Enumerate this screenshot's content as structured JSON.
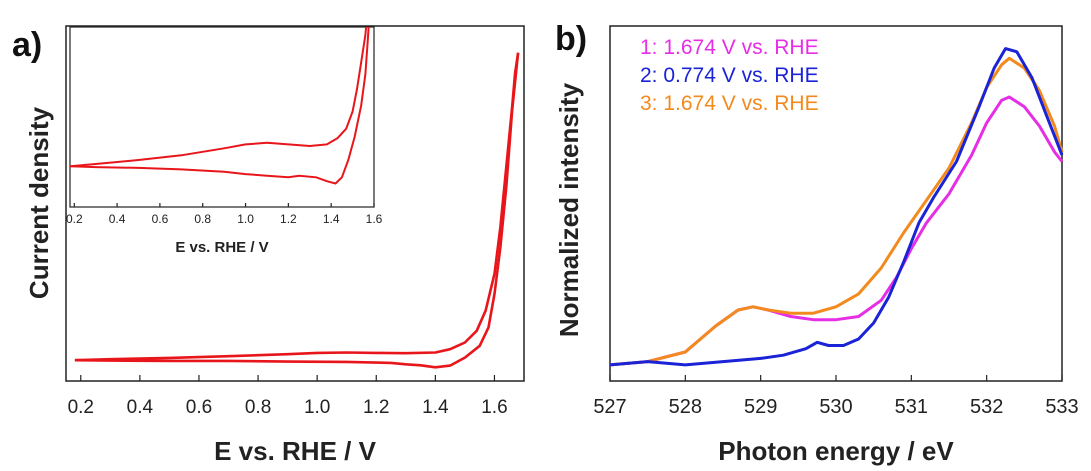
{
  "panels": [
    {
      "label": "a)"
    },
    {
      "label": "b)"
    }
  ],
  "chart_data": [
    {
      "type": "line",
      "panel": "a)",
      "title": "",
      "xlabel": "E vs. RHE / V",
      "ylabel": "Current density",
      "xlim": [
        0.15,
        1.7
      ],
      "ylim": [
        -0.6,
        10
      ],
      "x_ticks": [
        "0.2",
        "0.4",
        "0.6",
        "0.8",
        "1.0",
        "1.2",
        "1.4",
        "1.6"
      ],
      "y_ticks_shown": false,
      "grid": false,
      "series": [
        {
          "color": "#e8161b",
          "anodic": [
            [
              0.18,
              0.02
            ],
            [
              0.3,
              0.05
            ],
            [
              0.5,
              0.09
            ],
            [
              0.7,
              0.14
            ],
            [
              0.9,
              0.2
            ],
            [
              1.0,
              0.24
            ],
            [
              1.1,
              0.25
            ],
            [
              1.2,
              0.24
            ],
            [
              1.3,
              0.23
            ],
            [
              1.4,
              0.25
            ],
            [
              1.45,
              0.35
            ],
            [
              1.5,
              0.55
            ],
            [
              1.54,
              0.9
            ],
            [
              1.57,
              1.5
            ],
            [
              1.6,
              2.6
            ],
            [
              1.62,
              4.0
            ],
            [
              1.64,
              5.8
            ],
            [
              1.66,
              7.6
            ],
            [
              1.67,
              8.6
            ],
            [
              1.68,
              9.2
            ]
          ],
          "cathodic": [
            [
              1.68,
              9.2
            ],
            [
              1.66,
              7.5
            ],
            [
              1.64,
              5.2
            ],
            [
              1.62,
              3.4
            ],
            [
              1.6,
              2.0
            ],
            [
              1.58,
              1.0
            ],
            [
              1.55,
              0.45
            ],
            [
              1.5,
              0.1
            ],
            [
              1.45,
              -0.14
            ],
            [
              1.4,
              -0.19
            ],
            [
              1.35,
              -0.13
            ],
            [
              1.3,
              -0.1
            ],
            [
              1.25,
              -0.06
            ],
            [
              1.2,
              -0.05
            ],
            [
              1.1,
              -0.03
            ],
            [
              0.9,
              -0.02
            ],
            [
              0.7,
              0.0
            ],
            [
              0.5,
              0.0
            ],
            [
              0.3,
              0.01
            ],
            [
              0.18,
              0.02
            ]
          ]
        }
      ]
    },
    {
      "type": "line",
      "panel": "inset",
      "title": "",
      "xlabel": "E vs. RHE / V",
      "ylabel": "",
      "xlim": [
        0.18,
        1.6
      ],
      "ylim": [
        -0.5,
        1.8
      ],
      "x_ticks": [
        "0.2",
        "0.4",
        "0.6",
        "0.8",
        "1.0",
        "1.2",
        "1.4",
        "1.6"
      ],
      "grid": false,
      "series": [
        {
          "color": "#e8161b",
          "anodic": [
            [
              0.18,
              0.02
            ],
            [
              0.3,
              0.05
            ],
            [
              0.5,
              0.1
            ],
            [
              0.7,
              0.16
            ],
            [
              0.9,
              0.25
            ],
            [
              1.0,
              0.3
            ],
            [
              1.1,
              0.32
            ],
            [
              1.2,
              0.3
            ],
            [
              1.3,
              0.28
            ],
            [
              1.38,
              0.3
            ],
            [
              1.43,
              0.38
            ],
            [
              1.47,
              0.5
            ],
            [
              1.5,
              0.72
            ],
            [
              1.52,
              1.0
            ],
            [
              1.54,
              1.35
            ],
            [
              1.56,
              1.7
            ],
            [
              1.57,
              2.0
            ]
          ],
          "cathodic": [
            [
              1.58,
              2.0
            ],
            [
              1.57,
              1.6
            ],
            [
              1.56,
              1.2
            ],
            [
              1.54,
              0.8
            ],
            [
              1.51,
              0.4
            ],
            [
              1.48,
              0.1
            ],
            [
              1.45,
              -0.12
            ],
            [
              1.42,
              -0.2
            ],
            [
              1.38,
              -0.17
            ],
            [
              1.33,
              -0.12
            ],
            [
              1.25,
              -0.1
            ],
            [
              1.2,
              -0.12
            ],
            [
              1.1,
              -0.1
            ],
            [
              1.0,
              -0.08
            ],
            [
              0.9,
              -0.05
            ],
            [
              0.7,
              -0.02
            ],
            [
              0.5,
              0.0
            ],
            [
              0.3,
              0.01
            ],
            [
              0.18,
              0.02
            ]
          ]
        }
      ]
    },
    {
      "type": "line",
      "panel": "b)",
      "title": "",
      "xlabel": "Photon energy / eV",
      "ylabel": "Normalized intensity",
      "xlim": [
        527,
        533
      ],
      "ylim": [
        -0.05,
        1.05
      ],
      "x_ticks": [
        "527",
        "528",
        "529",
        "530",
        "531",
        "532",
        "533"
      ],
      "y_ticks_shown": false,
      "legend_position": "top-left",
      "grid": false,
      "series": [
        {
          "name": "1: 1.674 V vs. RHE",
          "color": "#e62ee6",
          "points": [
            [
              527.0,
              0.0
            ],
            [
              527.5,
              0.01
            ],
            [
              528.0,
              0.04
            ],
            [
              528.4,
              0.12
            ],
            [
              528.7,
              0.17
            ],
            [
              528.9,
              0.18
            ],
            [
              529.1,
              0.17
            ],
            [
              529.4,
              0.15
            ],
            [
              529.7,
              0.14
            ],
            [
              530.0,
              0.14
            ],
            [
              530.3,
              0.15
            ],
            [
              530.6,
              0.2
            ],
            [
              530.8,
              0.27
            ],
            [
              531.0,
              0.36
            ],
            [
              531.2,
              0.44
            ],
            [
              531.5,
              0.53
            ],
            [
              531.8,
              0.65
            ],
            [
              532.0,
              0.75
            ],
            [
              532.2,
              0.82
            ],
            [
              532.3,
              0.83
            ],
            [
              532.5,
              0.8
            ],
            [
              532.7,
              0.74
            ],
            [
              532.9,
              0.66
            ],
            [
              533.0,
              0.63
            ]
          ]
        },
        {
          "name": "2: 0.774 V vs. RHE",
          "color": "#1a23d6",
          "points": [
            [
              527.0,
              0.0
            ],
            [
              527.5,
              0.01
            ],
            [
              528.0,
              0.0
            ],
            [
              528.5,
              0.01
            ],
            [
              529.0,
              0.02
            ],
            [
              529.3,
              0.03
            ],
            [
              529.6,
              0.05
            ],
            [
              529.75,
              0.07
            ],
            [
              529.9,
              0.06
            ],
            [
              530.1,
              0.06
            ],
            [
              530.3,
              0.08
            ],
            [
              530.5,
              0.13
            ],
            [
              530.7,
              0.21
            ],
            [
              530.9,
              0.32
            ],
            [
              531.1,
              0.44
            ],
            [
              531.3,
              0.52
            ],
            [
              531.6,
              0.63
            ],
            [
              531.9,
              0.8
            ],
            [
              532.1,
              0.92
            ],
            [
              532.25,
              0.98
            ],
            [
              532.4,
              0.97
            ],
            [
              532.6,
              0.89
            ],
            [
              532.8,
              0.77
            ],
            [
              533.0,
              0.65
            ]
          ]
        },
        {
          "name": "3: 1.674 V vs. RHE",
          "color": "#f28a1e",
          "points": [
            [
              527.0,
              0.0
            ],
            [
              527.5,
              0.01
            ],
            [
              528.0,
              0.04
            ],
            [
              528.4,
              0.12
            ],
            [
              528.7,
              0.17
            ],
            [
              528.9,
              0.18
            ],
            [
              529.1,
              0.17
            ],
            [
              529.4,
              0.16
            ],
            [
              529.7,
              0.16
            ],
            [
              530.0,
              0.18
            ],
            [
              530.3,
              0.22
            ],
            [
              530.6,
              0.3
            ],
            [
              530.9,
              0.41
            ],
            [
              531.2,
              0.51
            ],
            [
              531.5,
              0.61
            ],
            [
              531.8,
              0.75
            ],
            [
              532.0,
              0.86
            ],
            [
              532.2,
              0.93
            ],
            [
              532.3,
              0.95
            ],
            [
              532.5,
              0.92
            ],
            [
              532.7,
              0.85
            ],
            [
              532.9,
              0.74
            ],
            [
              533.0,
              0.66
            ]
          ]
        }
      ]
    }
  ]
}
